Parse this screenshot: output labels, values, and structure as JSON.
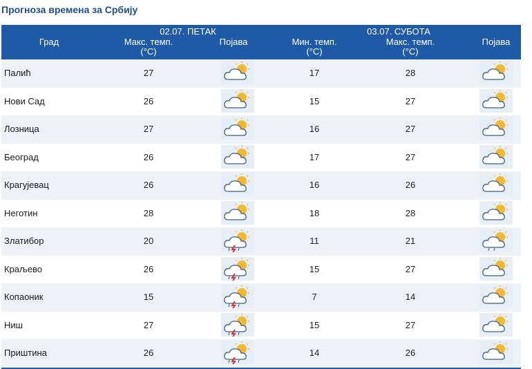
{
  "title": "Прогноза времена за Србију",
  "header": {
    "city_col": "Град",
    "day1": "02.07. ПЕТАК",
    "day2": "03.07. СУБОТА",
    "max_temp_l1": "Макс. темп.",
    "max_temp_l2": "(°C)",
    "min_temp_l1": "Мин. темп.",
    "min_temp_l2": "(°C)",
    "phenomenon": "Појава"
  },
  "rows": [
    {
      "city": "Палић",
      "max1": "27",
      "icon1": "partly-cloudy-sun-icon",
      "min2": "17",
      "max2": "28",
      "icon2": "partly-cloudy-sun-icon"
    },
    {
      "city": "Нови Сад",
      "max1": "26",
      "icon1": "partly-cloudy-sun-icon",
      "min2": "15",
      "max2": "27",
      "icon2": "partly-cloudy-sun-icon"
    },
    {
      "city": "Лозница",
      "max1": "27",
      "icon1": "partly-cloudy-sun-icon",
      "min2": "16",
      "max2": "27",
      "icon2": "partly-cloudy-sun-icon"
    },
    {
      "city": "Београд",
      "max1": "26",
      "icon1": "partly-cloudy-sun-icon",
      "min2": "17",
      "max2": "27",
      "icon2": "partly-cloudy-sun-icon"
    },
    {
      "city": "Крагујевац",
      "max1": "26",
      "icon1": "partly-cloudy-sun-icon",
      "min2": "16",
      "max2": "26",
      "icon2": "partly-cloudy-sun-icon"
    },
    {
      "city": "Неготин",
      "max1": "28",
      "icon1": "partly-cloudy-sun-icon",
      "min2": "18",
      "max2": "28",
      "icon2": "partly-cloudy-sun-icon"
    },
    {
      "city": "Златибор",
      "max1": "20",
      "icon1": "thunderstorm-icon",
      "min2": "11",
      "max2": "21",
      "icon2": "cloudy-rain-sun-icon"
    },
    {
      "city": "Краљево",
      "max1": "26",
      "icon1": "thunderstorm-icon",
      "min2": "15",
      "max2": "27",
      "icon2": "partly-cloudy-sun-icon"
    },
    {
      "city": "Копаоник",
      "max1": "15",
      "icon1": "thunderstorm-icon",
      "min2": "7",
      "max2": "14",
      "icon2": "partly-cloudy-sun-icon"
    },
    {
      "city": "Ниш",
      "max1": "27",
      "icon1": "thunderstorm-icon",
      "min2": "15",
      "max2": "27",
      "icon2": "partly-cloudy-sun-icon"
    },
    {
      "city": "Приштина",
      "max1": "26",
      "icon1": "thunderstorm-icon",
      "min2": "14",
      "max2": "26",
      "icon2": "partly-cloudy-sun-icon"
    }
  ],
  "colors": {
    "header_bg": "#1f5aa6",
    "title": "#1f4e8c",
    "sun": "#f5b82e",
    "cloud": "#ffffff",
    "cloud_stroke": "#3a5f86",
    "bolt": "#d8262b"
  }
}
